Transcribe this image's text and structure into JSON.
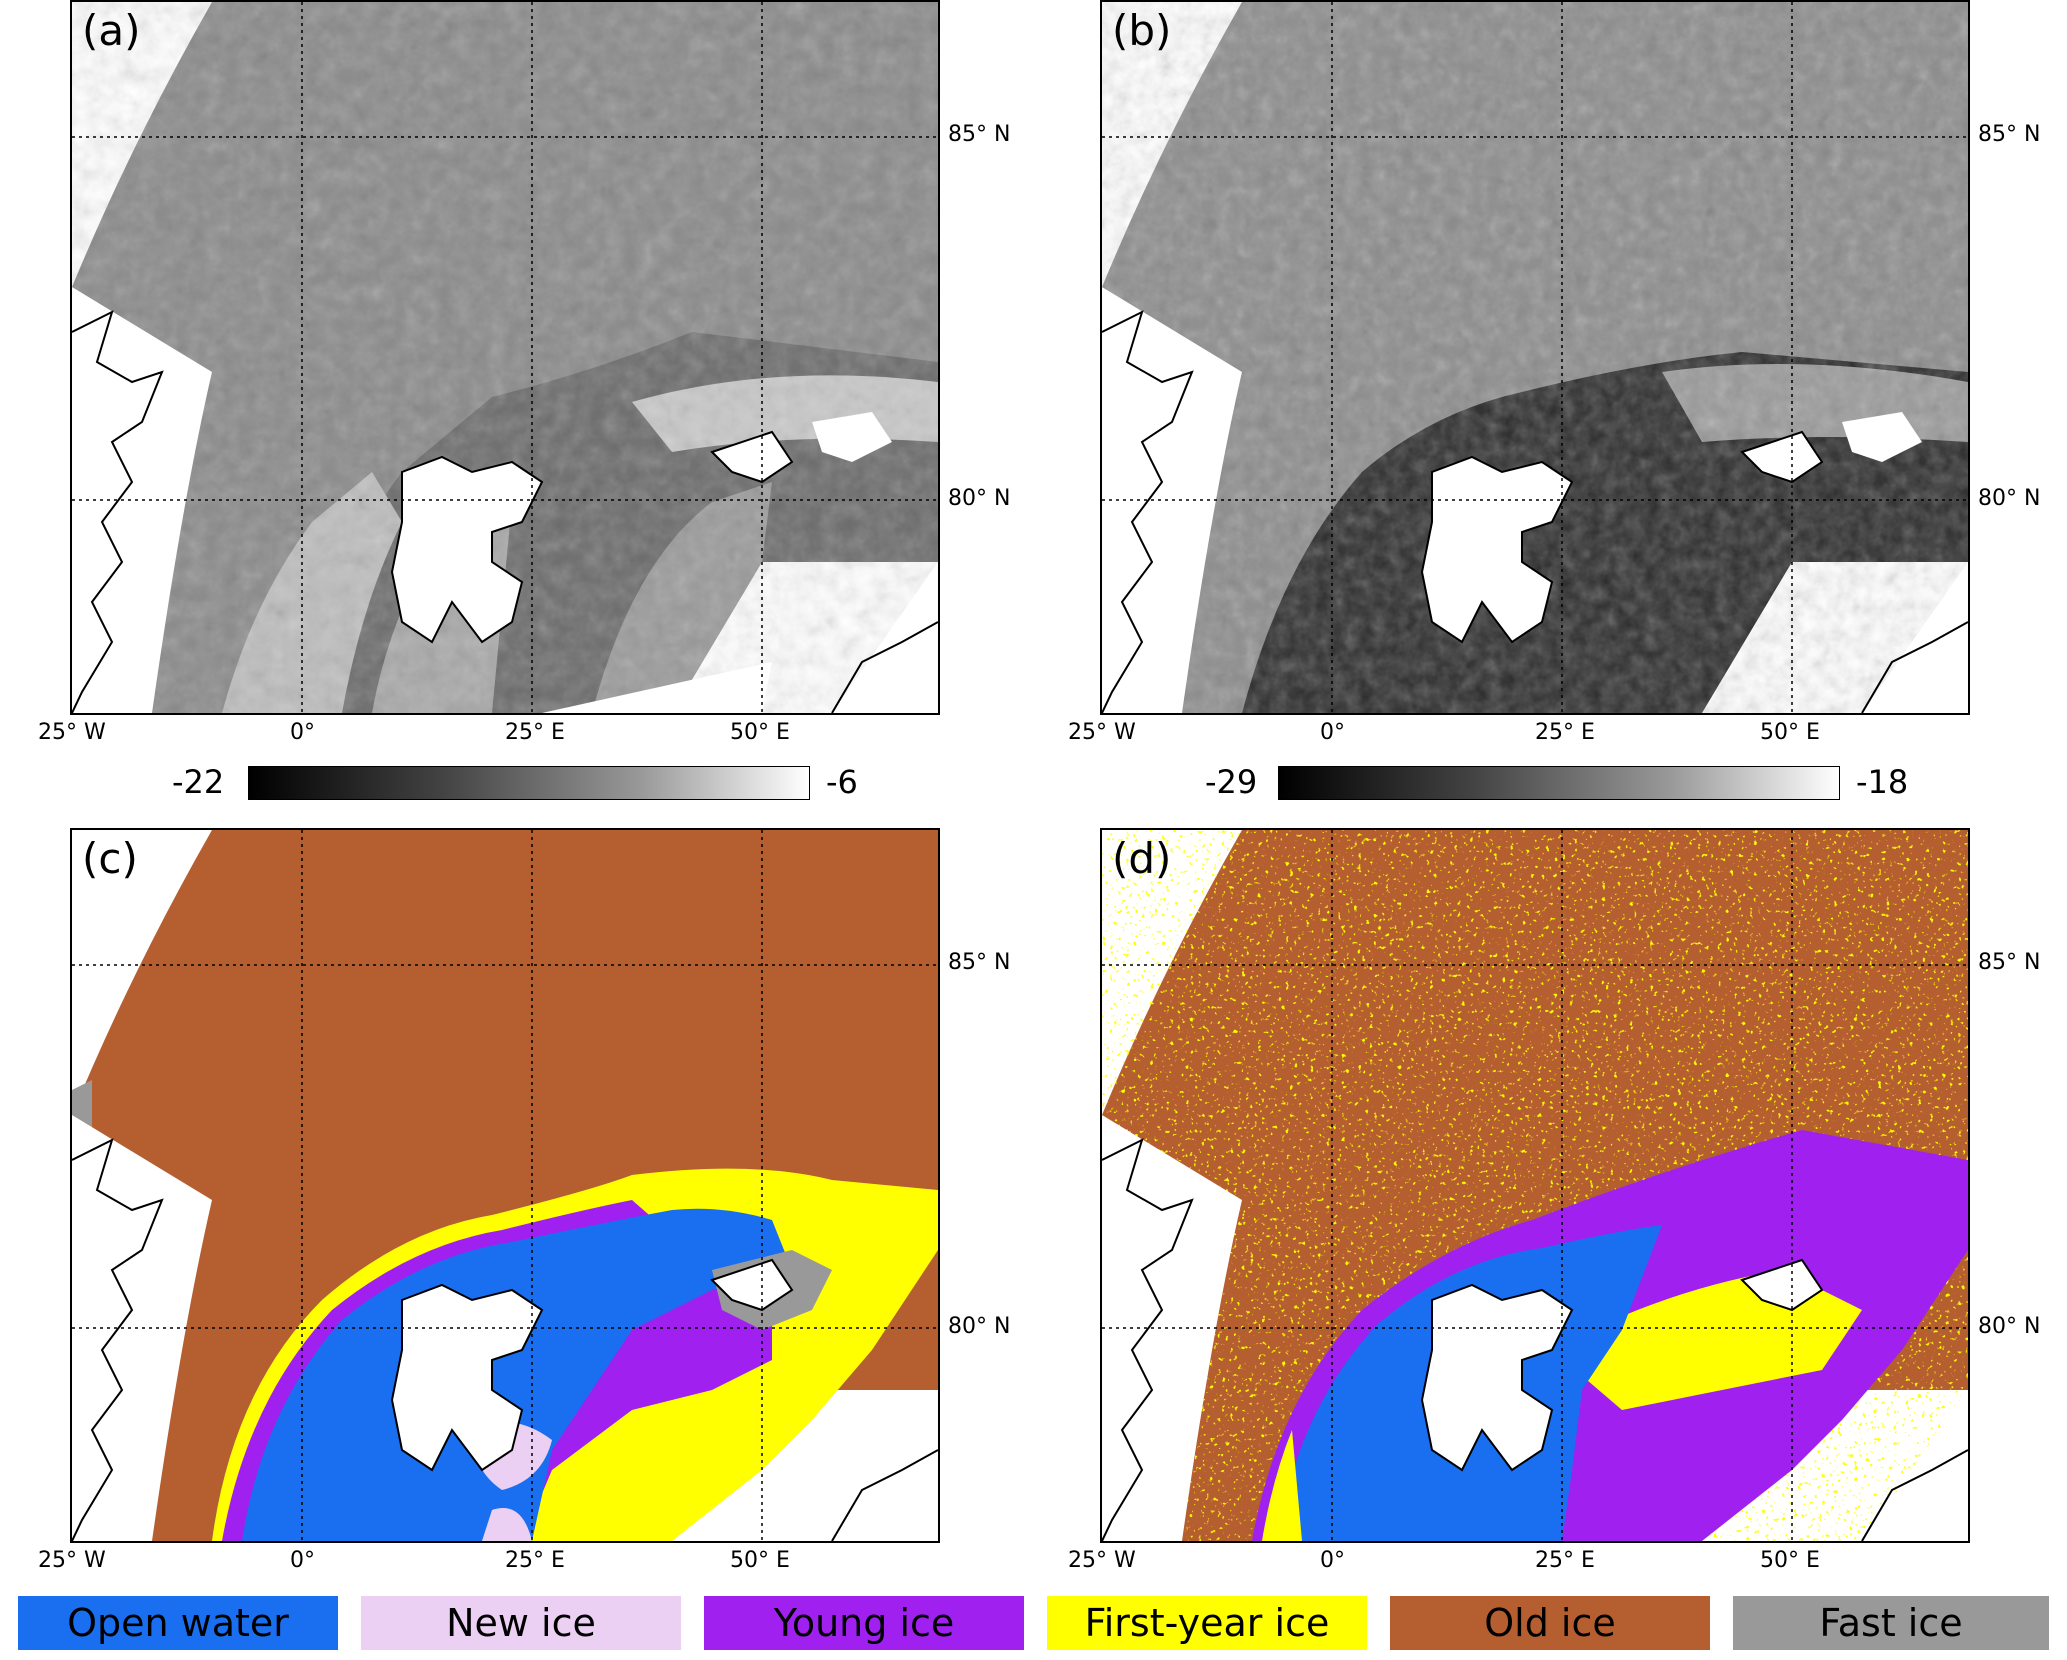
{
  "panels": [
    {
      "label": "(a)",
      "colorbar": {
        "min": "-22",
        "max": "-6"
      }
    },
    {
      "label": "(b)",
      "colorbar": {
        "min": "-29",
        "max": "-18"
      }
    },
    {
      "label": "(c)"
    },
    {
      "label": "(d)"
    }
  ],
  "lon_ticks": [
    "25° W",
    "0°",
    "25° E",
    "50° E"
  ],
  "lat_ticks": [
    "85° N",
    "80° N"
  ],
  "legend": [
    {
      "label": "Open water",
      "color": "#1a6ff0"
    },
    {
      "label": "New ice",
      "color": "#ecd0f3"
    },
    {
      "label": "Young ice",
      "color": "#a020f0"
    },
    {
      "label": "First-year ice",
      "color": "#ffff00"
    },
    {
      "label": "Old ice",
      "color": "#b55f30"
    },
    {
      "label": "Fast ice",
      "color": "#999999"
    }
  ]
}
